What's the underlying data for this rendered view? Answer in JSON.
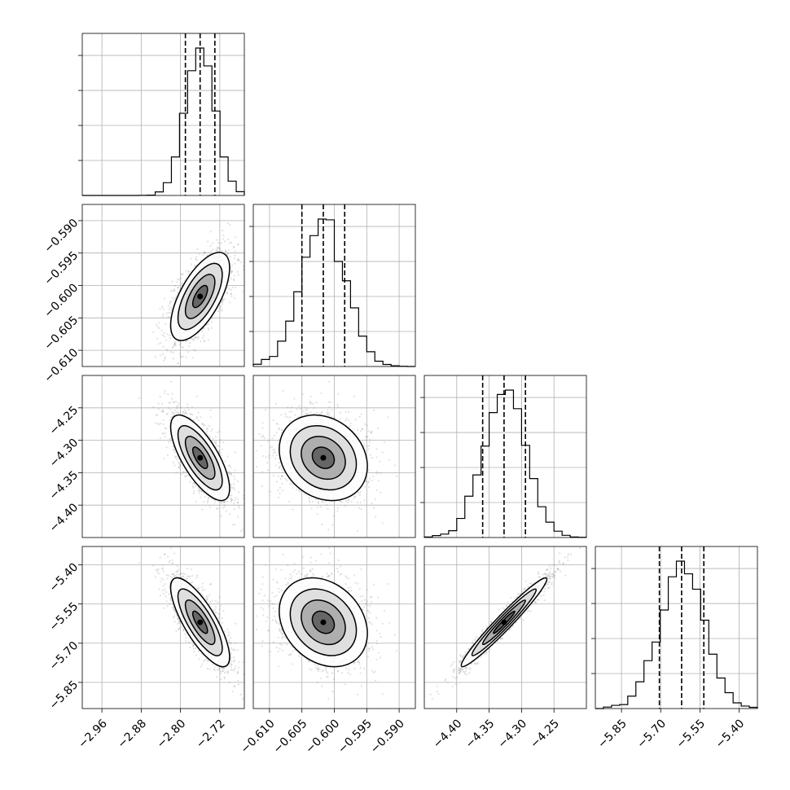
{
  "chart_data": {
    "type": "corner",
    "title": "",
    "parameters": [
      {
        "mean": -2.76,
        "std": 0.03,
        "quantiles": [
          -2.79,
          -2.76,
          -2.73
        ],
        "range": [
          -3.0,
          -2.67
        ],
        "ticks": [
          -2.96,
          -2.88,
          -2.8,
          -2.72
        ],
        "tick_labels": [
          "−2.96",
          "−2.88",
          "−2.80",
          "−2.72"
        ]
      },
      {
        "mean": -0.6017,
        "std": 0.0034,
        "quantiles": [
          -0.605,
          -0.6017,
          -0.5984
        ],
        "range": [
          -0.6125,
          -0.5875
        ],
        "ticks": [
          -0.61,
          -0.605,
          -0.6,
          -0.595,
          -0.59
        ],
        "tick_labels": [
          "−0.610",
          "−0.605",
          "−0.600",
          "−0.595",
          "−0.590"
        ]
      },
      {
        "mean": -4.327,
        "std": 0.033,
        "quantiles": [
          -4.36,
          -4.327,
          -4.294
        ],
        "range": [
          -4.45,
          -4.2
        ],
        "ticks": [
          -4.4,
          -4.35,
          -4.3,
          -4.25
        ],
        "tick_labels": [
          "−4.40",
          "−4.35",
          "−4.30",
          "−4.25"
        ]
      },
      {
        "mean": -5.62,
        "std": 0.085,
        "quantiles": [
          -5.705,
          -5.62,
          -5.535
        ],
        "range": [
          -5.95,
          -5.33
        ],
        "ticks": [
          -5.85,
          -5.7,
          -5.55,
          -5.4
        ],
        "tick_labels": [
          "−5.85",
          "−5.70",
          "−5.55",
          "−5.40"
        ]
      }
    ],
    "y_axis_rows": [
      {
        "row": 1,
        "ticks": [
          -0.61,
          -0.605,
          -0.6,
          -0.595,
          -0.59
        ],
        "tick_labels": [
          "−0.610",
          "−0.605",
          "−0.600",
          "−0.595",
          "−0.590"
        ]
      },
      {
        "row": 2,
        "ticks": [
          -4.4,
          -4.35,
          -4.3,
          -4.25
        ],
        "tick_labels": [
          "−4.40",
          "−4.35",
          "−4.30",
          "−4.25"
        ]
      },
      {
        "row": 3,
        "ticks": [
          -5.85,
          -5.7,
          -5.55,
          -5.4
        ],
        "tick_labels": [
          "−5.85",
          "−5.70",
          "−5.55",
          "−5.40"
        ]
      }
    ],
    "correlations": [
      {
        "pair": [
          0,
          1
        ],
        "rho": 0.65
      },
      {
        "pair": [
          0,
          2
        ],
        "rho": -0.72
      },
      {
        "pair": [
          1,
          2
        ],
        "rho": -0.2
      },
      {
        "pair": [
          0,
          3
        ],
        "rho": -0.78
      },
      {
        "pair": [
          1,
          3
        ],
        "rho": -0.25
      },
      {
        "pair": [
          2,
          3
        ],
        "rho": 0.97
      }
    ],
    "histogram": {
      "bins": 20,
      "style": "step"
    },
    "quantile_lines": {
      "levels": [
        0.16,
        0.5,
        0.84
      ],
      "style": "dashed"
    },
    "contour_levels_sigma": [
      0.5,
      1.0,
      1.5,
      2.0
    ],
    "grid": true,
    "colors": {
      "line": "#000000",
      "points": "#8c8c8c",
      "grid": "#b0b0b0"
    }
  }
}
